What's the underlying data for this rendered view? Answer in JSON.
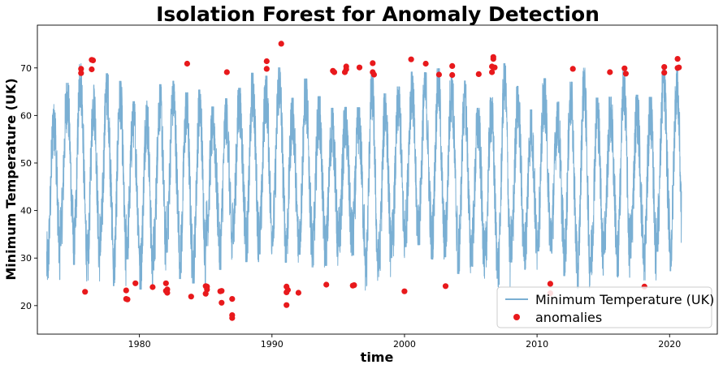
{
  "chart_data": {
    "type": "line",
    "title": "Isolation Forest for Anomaly Detection",
    "xlabel": "time",
    "ylabel": "Minimum Temperature (UK)",
    "xlim": [
      1972.3,
      2023.6
    ],
    "ylim": [
      14.0,
      79.0
    ],
    "xticks": [
      1980,
      1990,
      2000,
      2010,
      2020
    ],
    "yticks": [
      20,
      30,
      40,
      50,
      60,
      70
    ],
    "legend_placement": "lower-right",
    "grid": false,
    "series": [
      {
        "name": "Minimum Temperature (UK)",
        "kind": "line",
        "color": "#7aafd3",
        "x_range": [
          1973.0,
          2020.9
        ],
        "seasonal_peak_range": [
          58,
          68
        ],
        "seasonal_trough_range": [
          26,
          36
        ],
        "mean": 48
      },
      {
        "name": "anomalies",
        "kind": "scatter",
        "color": "#e8191c",
        "points": [
          [
            1975.6,
            69.8
          ],
          [
            1975.6,
            68.9
          ],
          [
            1975.9,
            22.9
          ],
          [
            1976.4,
            71.7
          ],
          [
            1976.5,
            71.6
          ],
          [
            1976.4,
            69.7
          ],
          [
            1979.0,
            23.2
          ],
          [
            1979.0,
            21.4
          ],
          [
            1979.1,
            21.3
          ],
          [
            1979.7,
            24.7
          ],
          [
            1981.0,
            23.9
          ],
          [
            1982.0,
            24.7
          ],
          [
            1982.1,
            23.4
          ],
          [
            1982.1,
            22.7
          ],
          [
            1982.0,
            23.1
          ],
          [
            1983.6,
            70.9
          ],
          [
            1983.9,
            21.9
          ],
          [
            1985.0,
            24.1
          ],
          [
            1985.1,
            23.4
          ],
          [
            1985.0,
            22.5
          ],
          [
            1985.1,
            24.0
          ],
          [
            1986.1,
            23.0
          ],
          [
            1986.2,
            20.6
          ],
          [
            1986.2,
            23.1
          ],
          [
            1986.6,
            69.1
          ],
          [
            1987.0,
            21.4
          ],
          [
            1987.0,
            18.0
          ],
          [
            1987.0,
            17.4
          ],
          [
            1989.6,
            71.4
          ],
          [
            1989.6,
            69.8
          ],
          [
            1990.7,
            75.1
          ],
          [
            1991.1,
            24.0
          ],
          [
            1991.2,
            23.3
          ],
          [
            1991.1,
            22.8
          ],
          [
            1991.1,
            20.1
          ],
          [
            1992.0,
            22.7
          ],
          [
            1994.1,
            24.4
          ],
          [
            1994.6,
            69.4
          ],
          [
            1994.7,
            69.1
          ],
          [
            1995.6,
            70.3
          ],
          [
            1995.6,
            69.7
          ],
          [
            1995.5,
            69.1
          ],
          [
            1996.1,
            24.2
          ],
          [
            1996.2,
            24.3
          ],
          [
            1996.6,
            70.1
          ],
          [
            1997.6,
            71.0
          ],
          [
            1997.6,
            69.1
          ],
          [
            1997.7,
            68.6
          ],
          [
            2000.0,
            23.0
          ],
          [
            2000.5,
            71.8
          ],
          [
            2001.6,
            70.9
          ],
          [
            2002.6,
            68.6
          ],
          [
            2003.1,
            24.1
          ],
          [
            2003.6,
            70.4
          ],
          [
            2003.6,
            68.5
          ],
          [
            2005.6,
            68.7
          ],
          [
            2006.6,
            70.3
          ],
          [
            2006.6,
            69.1
          ],
          [
            2006.7,
            72.3
          ],
          [
            2006.7,
            71.9
          ],
          [
            2006.8,
            70.1
          ],
          [
            2011.0,
            24.6
          ],
          [
            2011.0,
            22.6
          ],
          [
            2012.7,
            69.8
          ],
          [
            2015.5,
            69.1
          ],
          [
            2016.6,
            69.9
          ],
          [
            2016.7,
            68.8
          ],
          [
            2018.1,
            24.0
          ],
          [
            2019.6,
            70.2
          ],
          [
            2019.6,
            69.0
          ],
          [
            2020.6,
            71.9
          ],
          [
            2020.6,
            70.0
          ],
          [
            2020.7,
            70.1
          ]
        ]
      }
    ]
  }
}
